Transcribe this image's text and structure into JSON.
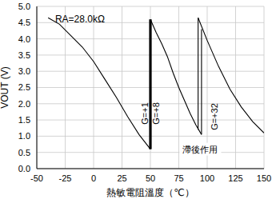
{
  "chart_data": {
    "type": "line",
    "xlabel": "熱敏電阻溫度（℃）",
    "ylabel": "VOUT (V)",
    "xlim": [
      -50,
      150
    ],
    "xticks": [
      -50,
      -25,
      0,
      25,
      50,
      75,
      100,
      125,
      150
    ],
    "ylim": [
      0,
      5
    ],
    "yticks": [
      {
        "value": 0,
        "label": "0.0"
      },
      0.5,
      {
        "value": 1,
        "label": "1.0"
      },
      1.5,
      {
        "value": 2,
        "label": "2.0"
      },
      2.5,
      {
        "value": 3,
        "label": "3.0"
      },
      3.5,
      {
        "value": 4,
        "label": "4.0"
      },
      4.5,
      {
        "value": 5,
        "label": "5.0"
      }
    ],
    "grid": true,
    "series": [
      {
        "color": "#000000",
        "line_style": "solid",
        "x": [
          -40,
          -30,
          -20,
          -10,
          0,
          10,
          20,
          30,
          40,
          50
        ],
        "values": [
          4.65,
          4.45,
          4.1,
          3.75,
          3.3,
          2.75,
          2.2,
          1.6,
          1.05,
          0.6
        ]
      },
      {
        "color": "#000000",
        "line_style": "bold",
        "x": [
          50,
          50
        ],
        "values": [
          0.6,
          4.6
        ]
      },
      {
        "color": "#000000",
        "line_style": "solid",
        "x": [
          50,
          55,
          60,
          65,
          70,
          75,
          80,
          85,
          90,
          95
        ],
        "values": [
          4.6,
          4.2,
          3.85,
          3.45,
          2.95,
          2.5,
          2.1,
          1.7,
          1.35,
          1.05
        ]
      },
      {
        "color": "#000000",
        "line_style": "solid",
        "x": [
          95,
          95
        ],
        "values": [
          1.05,
          4.3
        ]
      },
      {
        "color": "#000000",
        "line_style": "solid",
        "x": [
          92,
          92
        ],
        "values": [
          1.2,
          4.65
        ]
      },
      {
        "color": "#000000",
        "line_style": "solid",
        "x": [
          92,
          100,
          110,
          120,
          130,
          140,
          150
        ],
        "values": [
          4.65,
          3.95,
          3.15,
          2.45,
          1.9,
          1.45,
          1.1
        ]
      }
    ],
    "annotations": [
      "RA=28.0kΩ",
      "G=+1",
      "G=+8",
      "G=+32",
      "滯後作用"
    ]
  }
}
